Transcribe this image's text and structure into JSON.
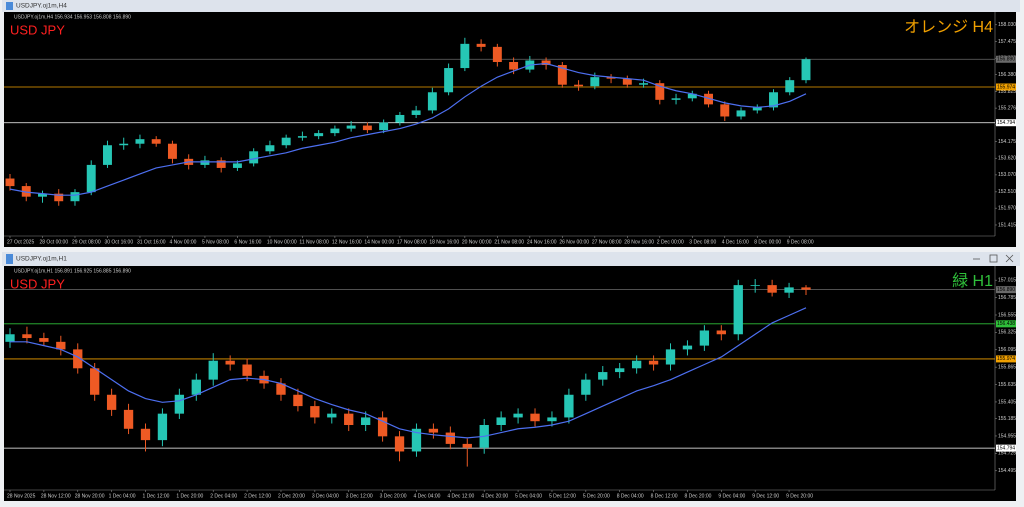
{
  "chart_data": [
    {
      "type": "candlestick",
      "window_title": "USDJPY.oj1m,H4",
      "info": "USDJPY.oj1m,H4 156.934 156.953 156.808 156.890",
      "title": "USD JPY",
      "annotation": "オレンジ H4",
      "annotation_color": "#f0a000",
      "up_color": "#26c6b5",
      "down_color": "#ee5a24",
      "categories": [
        "27 Oct 2025",
        null,
        "28 Oct 00:00",
        null,
        "29 Oct 08:00",
        null,
        "30 Oct 16:00",
        null,
        "31 Oct 16:00",
        null,
        "4 Nov 00:00",
        null,
        "5 Nov 08:00",
        null,
        "6 Nov 16:00",
        null,
        "10 Nov 00:00",
        null,
        "11 Nov 08:00",
        null,
        "12 Nov 16:00",
        null,
        "14 Nov 00:00",
        null,
        "17 Nov 08:00",
        null,
        "18 Nov 16:00",
        null,
        "20 Nov 00:00",
        null,
        "21 Nov 08:00",
        null,
        "24 Nov 16:00",
        null,
        "26 Nov 00:00",
        null,
        "27 Nov 08:00",
        null,
        "28 Nov 16:00",
        null,
        "2 Dec 00:00",
        null,
        "3 Dec 08:00",
        null,
        "4 Dec 16:00",
        null,
        "8 Dec 00:00",
        null,
        "9 Dec 08:00",
        null
      ],
      "open": [
        152.95,
        152.7,
        152.35,
        152.45,
        152.2,
        152.5,
        153.4,
        154.05,
        154.1,
        154.25,
        154.1,
        153.6,
        153.4,
        153.55,
        153.3,
        153.45,
        153.85,
        154.05,
        154.3,
        154.35,
        154.45,
        154.6,
        154.7,
        154.55,
        154.8,
        155.05,
        155.2,
        155.8,
        156.6,
        157.4,
        157.3,
        156.8,
        156.55,
        156.85,
        156.7,
        156.05,
        156.0,
        156.3,
        156.25,
        156.05,
        156.1,
        155.55,
        155.6,
        155.75,
        155.4,
        155.0,
        155.2,
        155.3,
        155.8,
        156.2
      ],
      "high": [
        153.1,
        152.8,
        152.55,
        152.6,
        152.6,
        153.55,
        154.2,
        154.3,
        154.4,
        154.35,
        154.2,
        153.75,
        153.7,
        153.65,
        153.55,
        153.95,
        154.2,
        154.4,
        154.5,
        154.55,
        154.7,
        154.85,
        154.8,
        154.9,
        155.15,
        155.35,
        155.95,
        156.75,
        157.6,
        157.55,
        157.4,
        156.95,
        157.0,
        156.95,
        156.8,
        156.2,
        156.45,
        156.4,
        156.35,
        156.25,
        156.2,
        155.75,
        155.85,
        155.85,
        155.5,
        155.3,
        155.4,
        155.9,
        156.3,
        156.95
      ],
      "low": [
        152.55,
        152.2,
        152.15,
        152.05,
        152.05,
        152.4,
        153.3,
        153.9,
        153.95,
        154.0,
        153.45,
        153.25,
        153.3,
        153.15,
        153.2,
        153.35,
        153.75,
        153.95,
        154.2,
        154.25,
        154.35,
        154.5,
        154.45,
        154.45,
        154.7,
        154.95,
        155.1,
        155.7,
        156.5,
        157.15,
        156.65,
        156.4,
        156.45,
        156.55,
        155.95,
        155.85,
        155.9,
        156.1,
        155.95,
        155.95,
        155.4,
        155.4,
        155.5,
        155.3,
        154.85,
        154.9,
        155.1,
        155.2,
        155.7,
        156.1
      ],
      "close": [
        152.7,
        152.35,
        152.45,
        152.2,
        152.5,
        153.4,
        154.05,
        154.1,
        154.25,
        154.1,
        153.6,
        153.4,
        153.55,
        153.3,
        153.45,
        153.85,
        154.05,
        154.3,
        154.35,
        154.45,
        154.6,
        154.7,
        154.55,
        154.8,
        155.05,
        155.2,
        155.8,
        156.6,
        157.4,
        157.3,
        156.8,
        156.55,
        156.85,
        156.7,
        156.05,
        156.0,
        156.3,
        156.25,
        156.05,
        156.1,
        155.55,
        155.6,
        155.75,
        155.4,
        155.0,
        155.2,
        155.3,
        155.8,
        156.2,
        156.89
      ],
      "ma": {
        "color": "#4d6ff0",
        "values": [
          152.6,
          152.5,
          152.45,
          152.4,
          152.4,
          152.5,
          152.7,
          152.9,
          153.1,
          153.3,
          153.4,
          153.5,
          153.5,
          153.5,
          153.5,
          153.6,
          153.7,
          153.8,
          153.95,
          154.05,
          154.15,
          154.3,
          154.4,
          154.5,
          154.6,
          154.75,
          154.95,
          155.25,
          155.65,
          156.0,
          156.3,
          156.5,
          156.7,
          156.75,
          156.6,
          156.45,
          156.35,
          156.3,
          156.25,
          156.2,
          156.0,
          155.85,
          155.75,
          155.6,
          155.45,
          155.35,
          155.3,
          155.35,
          155.5,
          155.75
        ]
      },
      "hlines": [
        {
          "value": 156.89,
          "label": "156.890",
          "color": "#6a6a6a"
        },
        {
          "value": 155.974,
          "label": "155.974",
          "color": "#f0a000"
        },
        {
          "value": 154.794,
          "label": "154.794",
          "color": "#ffffff"
        }
      ],
      "ylim": [
        151.15,
        158.32
      ],
      "yticks": [
        {
          "value": 158.03,
          "label": "158.030"
        },
        157.475,
        156.925,
        {
          "value": 156.38,
          "label": "156.380"
        },
        155.825,
        155.276,
        154.725,
        154.175,
        {
          "value": 153.62,
          "label": "153.620"
        },
        {
          "value": 153.07,
          "label": "153.070"
        },
        {
          "value": 152.51,
          "label": "152.510"
        },
        {
          "value": 151.97,
          "label": "151.970"
        },
        151.415
      ]
    },
    {
      "type": "candlestick",
      "window_title": "USDJPY.oj1m,H1",
      "info": "USDJPY.oj1m,H1 156.891 156.925 156.885 156.890",
      "title": "USD JPY",
      "annotation": "緑 H1",
      "annotation_color": "#2fbf3a",
      "up_color": "#26c6b5",
      "down_color": "#ee5a24",
      "categories": [
        "28 Nov 2025",
        null,
        "28 Nov 12:00",
        null,
        "28 Nov 20:00",
        null,
        "1 Dec 04:00",
        null,
        "1 Dec 12:00",
        null,
        "1 Dec 20:00",
        null,
        "2 Dec 04:00",
        null,
        "2 Dec 12:00",
        null,
        "2 Dec 20:00",
        null,
        "3 Dec 04:00",
        null,
        "3 Dec 12:00",
        null,
        "3 Dec 20:00",
        null,
        "4 Dec 04:00",
        null,
        "4 Dec 12:00",
        null,
        "4 Dec 20:00",
        null,
        "5 Dec 04:00",
        null,
        "5 Dec 12:00",
        null,
        "5 Dec 20:00",
        null,
        "8 Dec 04:00",
        null,
        "8 Dec 12:00",
        null,
        "8 Dec 20:00",
        null,
        "9 Dec 04:00",
        null,
        "9 Dec 12:00",
        null,
        "9 Dec 20:00",
        null
      ],
      "open": [
        156.2,
        156.3,
        156.25,
        156.2,
        156.1,
        155.85,
        155.5,
        155.3,
        155.05,
        154.9,
        155.25,
        155.5,
        155.7,
        155.95,
        155.9,
        155.75,
        155.65,
        155.5,
        155.35,
        155.2,
        155.25,
        155.1,
        155.2,
        154.95,
        154.75,
        155.05,
        155.0,
        154.85,
        154.8,
        155.1,
        155.2,
        155.25,
        155.15,
        155.2,
        155.5,
        155.7,
        155.8,
        155.85,
        155.95,
        155.9,
        156.1,
        156.15,
        156.35,
        156.3,
        156.95,
        156.95,
        156.85,
        156.92
      ],
      "high": [
        156.38,
        156.4,
        156.32,
        156.28,
        156.18,
        155.92,
        155.58,
        155.38,
        155.12,
        155.32,
        155.58,
        155.78,
        156.05,
        156.02,
        155.98,
        155.82,
        155.72,
        155.58,
        155.42,
        155.32,
        155.32,
        155.28,
        155.28,
        155.02,
        155.12,
        155.12,
        155.08,
        154.92,
        155.18,
        155.28,
        155.32,
        155.32,
        155.28,
        155.58,
        155.78,
        155.88,
        155.92,
        156.02,
        156.02,
        156.18,
        156.22,
        156.42,
        156.42,
        157.02,
        157.03,
        157.02,
        156.98,
        156.95
      ],
      "low": [
        156.12,
        156.18,
        156.15,
        156.02,
        155.78,
        155.42,
        155.22,
        154.98,
        154.75,
        154.82,
        155.18,
        155.42,
        155.62,
        155.82,
        155.68,
        155.58,
        155.42,
        155.28,
        155.12,
        155.12,
        155.02,
        155.02,
        154.88,
        154.62,
        154.68,
        154.92,
        154.78,
        154.55,
        154.72,
        155.02,
        155.12,
        155.08,
        155.08,
        155.12,
        155.42,
        155.62,
        155.72,
        155.78,
        155.82,
        155.82,
        156.02,
        156.08,
        156.22,
        156.22,
        156.85,
        156.8,
        156.78,
        156.82
      ],
      "close": [
        156.3,
        156.25,
        156.2,
        156.1,
        155.85,
        155.5,
        155.3,
        155.05,
        154.9,
        155.25,
        155.5,
        155.7,
        155.95,
        155.9,
        155.75,
        155.65,
        155.5,
        155.35,
        155.2,
        155.25,
        155.1,
        155.2,
        154.95,
        154.75,
        155.05,
        155.0,
        154.85,
        154.8,
        155.1,
        155.2,
        155.25,
        155.15,
        155.2,
        155.5,
        155.7,
        155.8,
        155.85,
        155.95,
        155.9,
        156.1,
        156.15,
        156.35,
        156.3,
        156.95,
        156.95,
        156.85,
        156.92,
        156.89
      ],
      "ma": {
        "color": "#4d6ff0",
        "values": [
          156.2,
          156.2,
          156.15,
          156.1,
          156.0,
          155.85,
          155.7,
          155.55,
          155.45,
          155.4,
          155.42,
          155.5,
          155.6,
          155.7,
          155.72,
          155.7,
          155.65,
          155.55,
          155.45,
          155.37,
          155.3,
          155.25,
          155.15,
          155.05,
          155.0,
          154.97,
          154.95,
          154.93,
          154.95,
          155.0,
          155.05,
          155.07,
          155.1,
          155.15,
          155.25,
          155.35,
          155.45,
          155.55,
          155.62,
          155.7,
          155.8,
          155.9,
          156.0,
          156.15,
          156.3,
          156.45,
          156.55,
          156.65
        ]
      },
      "hlines": [
        {
          "value": 156.89,
          "label": "156.890",
          "color": "#6a6a6a"
        },
        {
          "value": 156.438,
          "label": "156.438",
          "color": "#2fbf3a"
        },
        {
          "value": 155.974,
          "label": "155.974",
          "color": "#f0a000"
        },
        {
          "value": 154.794,
          "label": "154.794",
          "color": "#ffffff"
        }
      ],
      "ylim": [
        154.28,
        157.15
      ],
      "yticks": [
        157.015,
        156.785,
        156.555,
        156.325,
        156.095,
        155.865,
        155.635,
        155.405,
        155.185,
        154.955,
        154.725,
        154.495
      ]
    }
  ]
}
